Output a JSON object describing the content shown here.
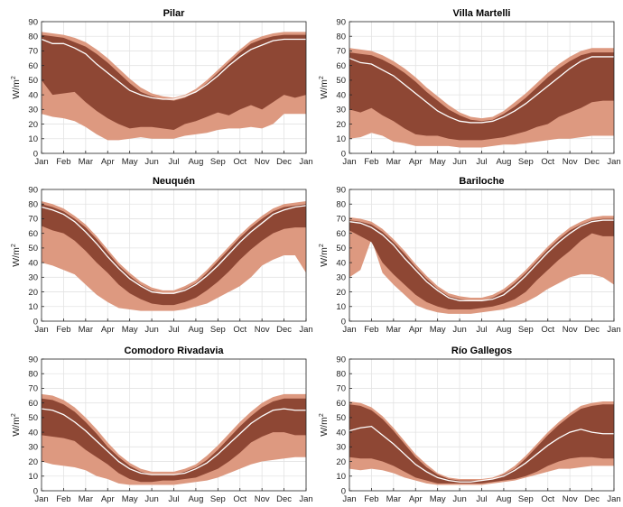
{
  "colors": {
    "outer_band": "#dd9980",
    "inner_band": "#8e4734",
    "median_line": "#ffffff",
    "grid": "#e3e3e3",
    "axis": "#262626"
  },
  "chart_data": [
    {
      "type": "area",
      "title": "Pilar",
      "ylabel": "W/m",
      "ylabel_sup": "2",
      "ylim": [
        0,
        90
      ],
      "yticks": [
        0,
        10,
        20,
        30,
        40,
        50,
        60,
        70,
        80,
        90
      ],
      "xticks": [
        "Jan",
        "Feb",
        "Mar",
        "Apr",
        "May",
        "Jun",
        "Jul",
        "Aug",
        "Sep",
        "Oct",
        "Nov",
        "Dec",
        "Jan"
      ],
      "grid": true,
      "x": [
        0,
        0.5,
        1,
        1.5,
        2,
        2.5,
        3,
        3.5,
        4,
        4.5,
        5,
        5.5,
        6,
        6.5,
        7,
        7.5,
        8,
        8.5,
        9,
        9.5,
        10,
        10.5,
        11,
        11.5,
        12
      ],
      "series": [
        {
          "role": "max",
          "values": [
            83,
            82,
            81,
            79,
            76,
            71,
            65,
            58,
            51,
            45,
            41,
            39,
            38,
            40,
            44,
            50,
            57,
            64,
            71,
            77,
            80,
            82,
            83,
            83,
            83
          ]
        },
        {
          "role": "q75",
          "values": [
            81,
            80,
            79,
            76,
            73,
            68,
            62,
            55,
            48,
            42,
            39,
            37,
            36,
            38,
            42,
            48,
            55,
            62,
            69,
            75,
            78,
            80,
            81,
            81,
            81
          ]
        },
        {
          "role": "median",
          "values": [
            78,
            75,
            75,
            72,
            68,
            61,
            55,
            49,
            43,
            40,
            38,
            37,
            37,
            39,
            42,
            47,
            53,
            60,
            66,
            71,
            74,
            77,
            78,
            78,
            78
          ]
        },
        {
          "role": "q25",
          "values": [
            50,
            40,
            41,
            42,
            35,
            29,
            24,
            20,
            17,
            18,
            18,
            17,
            16,
            20,
            22,
            25,
            28,
            26,
            30,
            33,
            30,
            35,
            40,
            38,
            40
          ]
        },
        {
          "role": "min",
          "values": [
            27,
            25,
            24,
            22,
            18,
            13,
            9,
            9,
            10,
            11,
            10,
            10,
            10,
            12,
            13,
            14,
            16,
            17,
            17,
            18,
            17,
            20,
            27,
            27,
            27
          ]
        }
      ]
    },
    {
      "type": "area",
      "title": "Villa Martelli",
      "ylabel": "W/m",
      "ylabel_sup": "2",
      "ylim": [
        0,
        90
      ],
      "yticks": [
        0,
        10,
        20,
        30,
        40,
        50,
        60,
        70,
        80,
        90
      ],
      "xticks": [
        "Jan",
        "Feb",
        "Mar",
        "Apr",
        "May",
        "Jun",
        "Jul",
        "Aug",
        "Sep",
        "Oct",
        "Nov",
        "Dec",
        "Jan"
      ],
      "grid": true,
      "x": [
        0,
        0.5,
        1,
        1.5,
        2,
        2.5,
        3,
        3.5,
        4,
        4.5,
        5,
        5.5,
        6,
        6.5,
        7,
        7.5,
        8,
        8.5,
        9,
        9.5,
        10,
        10.5,
        11,
        11.5,
        12
      ],
      "series": [
        {
          "role": "max",
          "values": [
            72,
            71,
            70,
            67,
            63,
            58,
            52,
            45,
            39,
            33,
            28,
            25,
            24,
            25,
            29,
            35,
            41,
            48,
            55,
            61,
            66,
            70,
            72,
            72,
            72
          ]
        },
        {
          "role": "q75",
          "values": [
            69,
            68,
            67,
            64,
            60,
            55,
            49,
            42,
            36,
            30,
            26,
            23,
            22,
            23,
            27,
            32,
            38,
            45,
            52,
            58,
            63,
            67,
            69,
            69,
            69
          ]
        },
        {
          "role": "median",
          "values": [
            65,
            62,
            61,
            57,
            53,
            47,
            41,
            35,
            29,
            25,
            22,
            21,
            21,
            22,
            25,
            29,
            34,
            40,
            46,
            52,
            58,
            63,
            66,
            66,
            66
          ]
        },
        {
          "role": "q25",
          "values": [
            30,
            28,
            31,
            26,
            22,
            17,
            13,
            12,
            12,
            10,
            9,
            9,
            9,
            10,
            11,
            13,
            15,
            18,
            20,
            25,
            28,
            31,
            35,
            36,
            36
          ]
        },
        {
          "role": "min",
          "values": [
            10,
            11,
            14,
            12,
            8,
            7,
            5,
            5,
            5,
            5,
            4,
            4,
            4,
            5,
            6,
            6,
            7,
            8,
            9,
            10,
            10,
            11,
            12,
            12,
            12
          ]
        }
      ]
    },
    {
      "type": "area",
      "title": "Neuquén",
      "ylabel": "W/m",
      "ylabel_sup": "2",
      "ylim": [
        0,
        90
      ],
      "yticks": [
        0,
        10,
        20,
        30,
        40,
        50,
        60,
        70,
        80,
        90
      ],
      "xticks": [
        "Jan",
        "Feb",
        "Mar",
        "Apr",
        "May",
        "Jun",
        "Jul",
        "Aug",
        "Sep",
        "Oct",
        "Nov",
        "Dec",
        "Jan"
      ],
      "grid": true,
      "x": [
        0,
        0.5,
        1,
        1.5,
        2,
        2.5,
        3,
        3.5,
        4,
        4.5,
        5,
        5.5,
        6,
        6.5,
        7,
        7.5,
        8,
        8.5,
        9,
        9.5,
        10,
        10.5,
        11,
        11.5,
        12
      ],
      "series": [
        {
          "role": "max",
          "values": [
            82,
            80,
            77,
            72,
            66,
            58,
            49,
            40,
            33,
            27,
            23,
            21,
            21,
            24,
            28,
            35,
            43,
            51,
            59,
            66,
            72,
            77,
            80,
            81,
            82
          ]
        },
        {
          "role": "q75",
          "values": [
            80,
            78,
            75,
            70,
            64,
            56,
            47,
            38,
            31,
            25,
            21,
            19,
            19,
            22,
            26,
            33,
            41,
            49,
            57,
            64,
            70,
            75,
            78,
            79,
            80
          ]
        },
        {
          "role": "median",
          "values": [
            78,
            76,
            73,
            68,
            61,
            53,
            44,
            36,
            29,
            24,
            20,
            19,
            19,
            21,
            25,
            31,
            38,
            46,
            54,
            61,
            67,
            73,
            76,
            78,
            79
          ]
        },
        {
          "role": "q25",
          "values": [
            65,
            62,
            60,
            55,
            48,
            40,
            33,
            25,
            19,
            15,
            12,
            11,
            11,
            13,
            16,
            21,
            27,
            34,
            42,
            49,
            55,
            60,
            63,
            64,
            64
          ]
        },
        {
          "role": "min",
          "values": [
            40,
            38,
            35,
            32,
            25,
            18,
            13,
            9,
            8,
            7,
            7,
            7,
            7,
            8,
            10,
            12,
            16,
            20,
            24,
            30,
            38,
            42,
            45,
            45,
            33
          ]
        }
      ]
    },
    {
      "type": "area",
      "title": "Bariloche",
      "ylabel": "W/m",
      "ylabel_sup": "2",
      "ylim": [
        0,
        90
      ],
      "yticks": [
        0,
        10,
        20,
        30,
        40,
        50,
        60,
        70,
        80,
        90
      ],
      "xticks": [
        "Jan",
        "Feb",
        "Mar",
        "Apr",
        "May",
        "Jun",
        "Jul",
        "Aug",
        "Sep",
        "Oct",
        "Nov",
        "Dec",
        "Jan"
      ],
      "grid": true,
      "x": [
        0,
        0.5,
        1,
        1.5,
        2,
        2.5,
        3,
        3.5,
        4,
        4.5,
        5,
        5.5,
        6,
        6.5,
        7,
        7.5,
        8,
        8.5,
        9,
        9.5,
        10,
        10.5,
        11,
        11.5,
        12
      ],
      "series": [
        {
          "role": "max",
          "values": [
            71,
            70,
            68,
            63,
            56,
            48,
            39,
            31,
            24,
            19,
            17,
            16,
            16,
            18,
            22,
            28,
            35,
            43,
            51,
            58,
            64,
            68,
            71,
            72,
            72
          ]
        },
        {
          "role": "q75",
          "values": [
            69,
            68,
            66,
            61,
            54,
            46,
            37,
            29,
            22,
            17,
            15,
            14,
            14,
            16,
            20,
            26,
            33,
            41,
            49,
            56,
            62,
            66,
            69,
            70,
            70
          ]
        },
        {
          "role": "median",
          "values": [
            68,
            67,
            64,
            59,
            52,
            43,
            35,
            27,
            21,
            16,
            14,
            14,
            14,
            15,
            18,
            24,
            31,
            39,
            47,
            54,
            60,
            65,
            68,
            69,
            69
          ]
        },
        {
          "role": "q25",
          "values": [
            62,
            58,
            54,
            40,
            32,
            25,
            18,
            13,
            10,
            8,
            8,
            8,
            9,
            10,
            12,
            15,
            20,
            28,
            35,
            42,
            48,
            55,
            60,
            58,
            58
          ]
        },
        {
          "role": "min",
          "values": [
            30,
            35,
            56,
            33,
            25,
            18,
            11,
            8,
            6,
            5,
            5,
            5,
            6,
            7,
            8,
            10,
            13,
            17,
            22,
            26,
            30,
            32,
            32,
            30,
            25
          ]
        }
      ]
    },
    {
      "type": "area",
      "title": "Comodoro Rivadavia",
      "ylabel": "W/m",
      "ylabel_sup": "2",
      "ylim": [
        0,
        90
      ],
      "yticks": [
        0,
        10,
        20,
        30,
        40,
        50,
        60,
        70,
        80,
        90
      ],
      "xticks": [
        "Jan",
        "Feb",
        "Mar",
        "Apr",
        "May",
        "Jun",
        "Jul",
        "Aug",
        "Sep",
        "Oct",
        "Nov",
        "Dec",
        "Jan"
      ],
      "grid": true,
      "x": [
        0,
        0.5,
        1,
        1.5,
        2,
        2.5,
        3,
        3.5,
        4,
        4.5,
        5,
        5.5,
        6,
        6.5,
        7,
        7.5,
        8,
        8.5,
        9,
        9.5,
        10,
        10.5,
        11,
        11.5,
        12
      ],
      "series": [
        {
          "role": "max",
          "values": [
            66,
            65,
            62,
            57,
            50,
            42,
            33,
            25,
            19,
            15,
            13,
            13,
            13,
            15,
            18,
            24,
            31,
            39,
            47,
            54,
            60,
            64,
            66,
            66,
            66
          ]
        },
        {
          "role": "q75",
          "values": [
            63,
            62,
            59,
            54,
            47,
            39,
            30,
            23,
            17,
            13,
            11,
            11,
            11,
            13,
            16,
            21,
            28,
            36,
            44,
            51,
            57,
            61,
            63,
            63,
            63
          ]
        },
        {
          "role": "median",
          "values": [
            56,
            55,
            52,
            47,
            41,
            34,
            27,
            20,
            15,
            12,
            11,
            11,
            11,
            12,
            15,
            19,
            25,
            32,
            39,
            46,
            51,
            55,
            56,
            55,
            55
          ]
        },
        {
          "role": "q25",
          "values": [
            38,
            37,
            36,
            34,
            28,
            23,
            18,
            12,
            8,
            6,
            6,
            7,
            7,
            8,
            9,
            12,
            15,
            20,
            26,
            33,
            37,
            40,
            40,
            38,
            38
          ]
        },
        {
          "role": "min",
          "values": [
            20,
            18,
            17,
            16,
            14,
            10,
            8,
            5,
            4,
            4,
            4,
            4,
            4,
            5,
            6,
            7,
            9,
            12,
            15,
            18,
            20,
            21,
            22,
            23,
            23
          ]
        }
      ]
    },
    {
      "type": "area",
      "title": "Río Gallegos",
      "ylabel": "W/m",
      "ylabel_sup": "2",
      "ylim": [
        0,
        90
      ],
      "yticks": [
        0,
        10,
        20,
        30,
        40,
        50,
        60,
        70,
        80,
        90
      ],
      "xticks": [
        "Jan",
        "Feb",
        "Mar",
        "Apr",
        "May",
        "Jun",
        "Jul",
        "Aug",
        "Sep",
        "Oct",
        "Nov",
        "Dec",
        "Jan"
      ],
      "grid": true,
      "x": [
        0,
        0.5,
        1,
        1.5,
        2,
        2.5,
        3,
        3.5,
        4,
        4.5,
        5,
        5.5,
        6,
        6.5,
        7,
        7.5,
        8,
        8.5,
        9,
        9.5,
        10,
        10.5,
        11,
        11.5,
        12
      ],
      "series": [
        {
          "role": "max",
          "values": [
            61,
            60,
            57,
            51,
            43,
            34,
            25,
            18,
            12,
            9,
            8,
            8,
            8,
            9,
            12,
            17,
            24,
            32,
            40,
            47,
            53,
            58,
            60,
            61,
            61
          ]
        },
        {
          "role": "q75",
          "values": [
            59,
            58,
            55,
            49,
            41,
            32,
            23,
            16,
            11,
            8,
            7,
            7,
            7,
            8,
            11,
            15,
            22,
            30,
            38,
            45,
            51,
            56,
            58,
            59,
            59
          ]
        },
        {
          "role": "median",
          "values": [
            41,
            43,
            44,
            38,
            32,
            25,
            18,
            13,
            9,
            7,
            6,
            6,
            7,
            8,
            10,
            14,
            19,
            25,
            31,
            36,
            40,
            42,
            40,
            39,
            39
          ]
        },
        {
          "role": "q25",
          "values": [
            23,
            22,
            22,
            20,
            17,
            13,
            9,
            7,
            5,
            5,
            5,
            5,
            5,
            6,
            7,
            8,
            10,
            13,
            17,
            20,
            22,
            23,
            23,
            22,
            22
          ]
        },
        {
          "role": "min",
          "values": [
            15,
            14,
            15,
            14,
            12,
            9,
            7,
            5,
            4,
            4,
            4,
            4,
            4,
            5,
            6,
            7,
            9,
            11,
            13,
            15,
            15,
            16,
            17,
            17,
            17
          ]
        }
      ]
    }
  ]
}
